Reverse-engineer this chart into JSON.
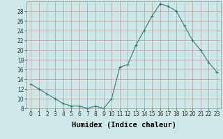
{
  "x": [
    0,
    1,
    2,
    3,
    4,
    5,
    6,
    7,
    8,
    9,
    10,
    11,
    12,
    13,
    14,
    15,
    16,
    17,
    18,
    19,
    20,
    21,
    22,
    23
  ],
  "y": [
    13,
    12,
    11,
    10,
    9,
    8.5,
    8.5,
    8,
    8.5,
    8,
    10,
    16.5,
    17,
    21,
    24,
    27,
    29.5,
    29,
    28,
    25,
    22,
    20,
    17.5,
    15.5
  ],
  "line_color": "#2e7d6e",
  "marker": "+",
  "marker_size": 3,
  "bg_color": "#cce8e8",
  "grid_color_major": "#c0a8a8",
  "grid_color_minor": "#ddd0d0",
  "xlabel": "Humidex (Indice chaleur)",
  "xlim": [
    -0.5,
    23.5
  ],
  "ylim": [
    8,
    30
  ],
  "yticks": [
    8,
    10,
    12,
    14,
    16,
    18,
    20,
    22,
    24,
    26,
    28
  ],
  "xticks": [
    0,
    1,
    2,
    3,
    4,
    5,
    6,
    7,
    8,
    9,
    10,
    11,
    12,
    13,
    14,
    15,
    16,
    17,
    18,
    19,
    20,
    21,
    22,
    23
  ],
  "tick_label_fontsize": 5.5,
  "xlabel_fontsize": 7.5
}
